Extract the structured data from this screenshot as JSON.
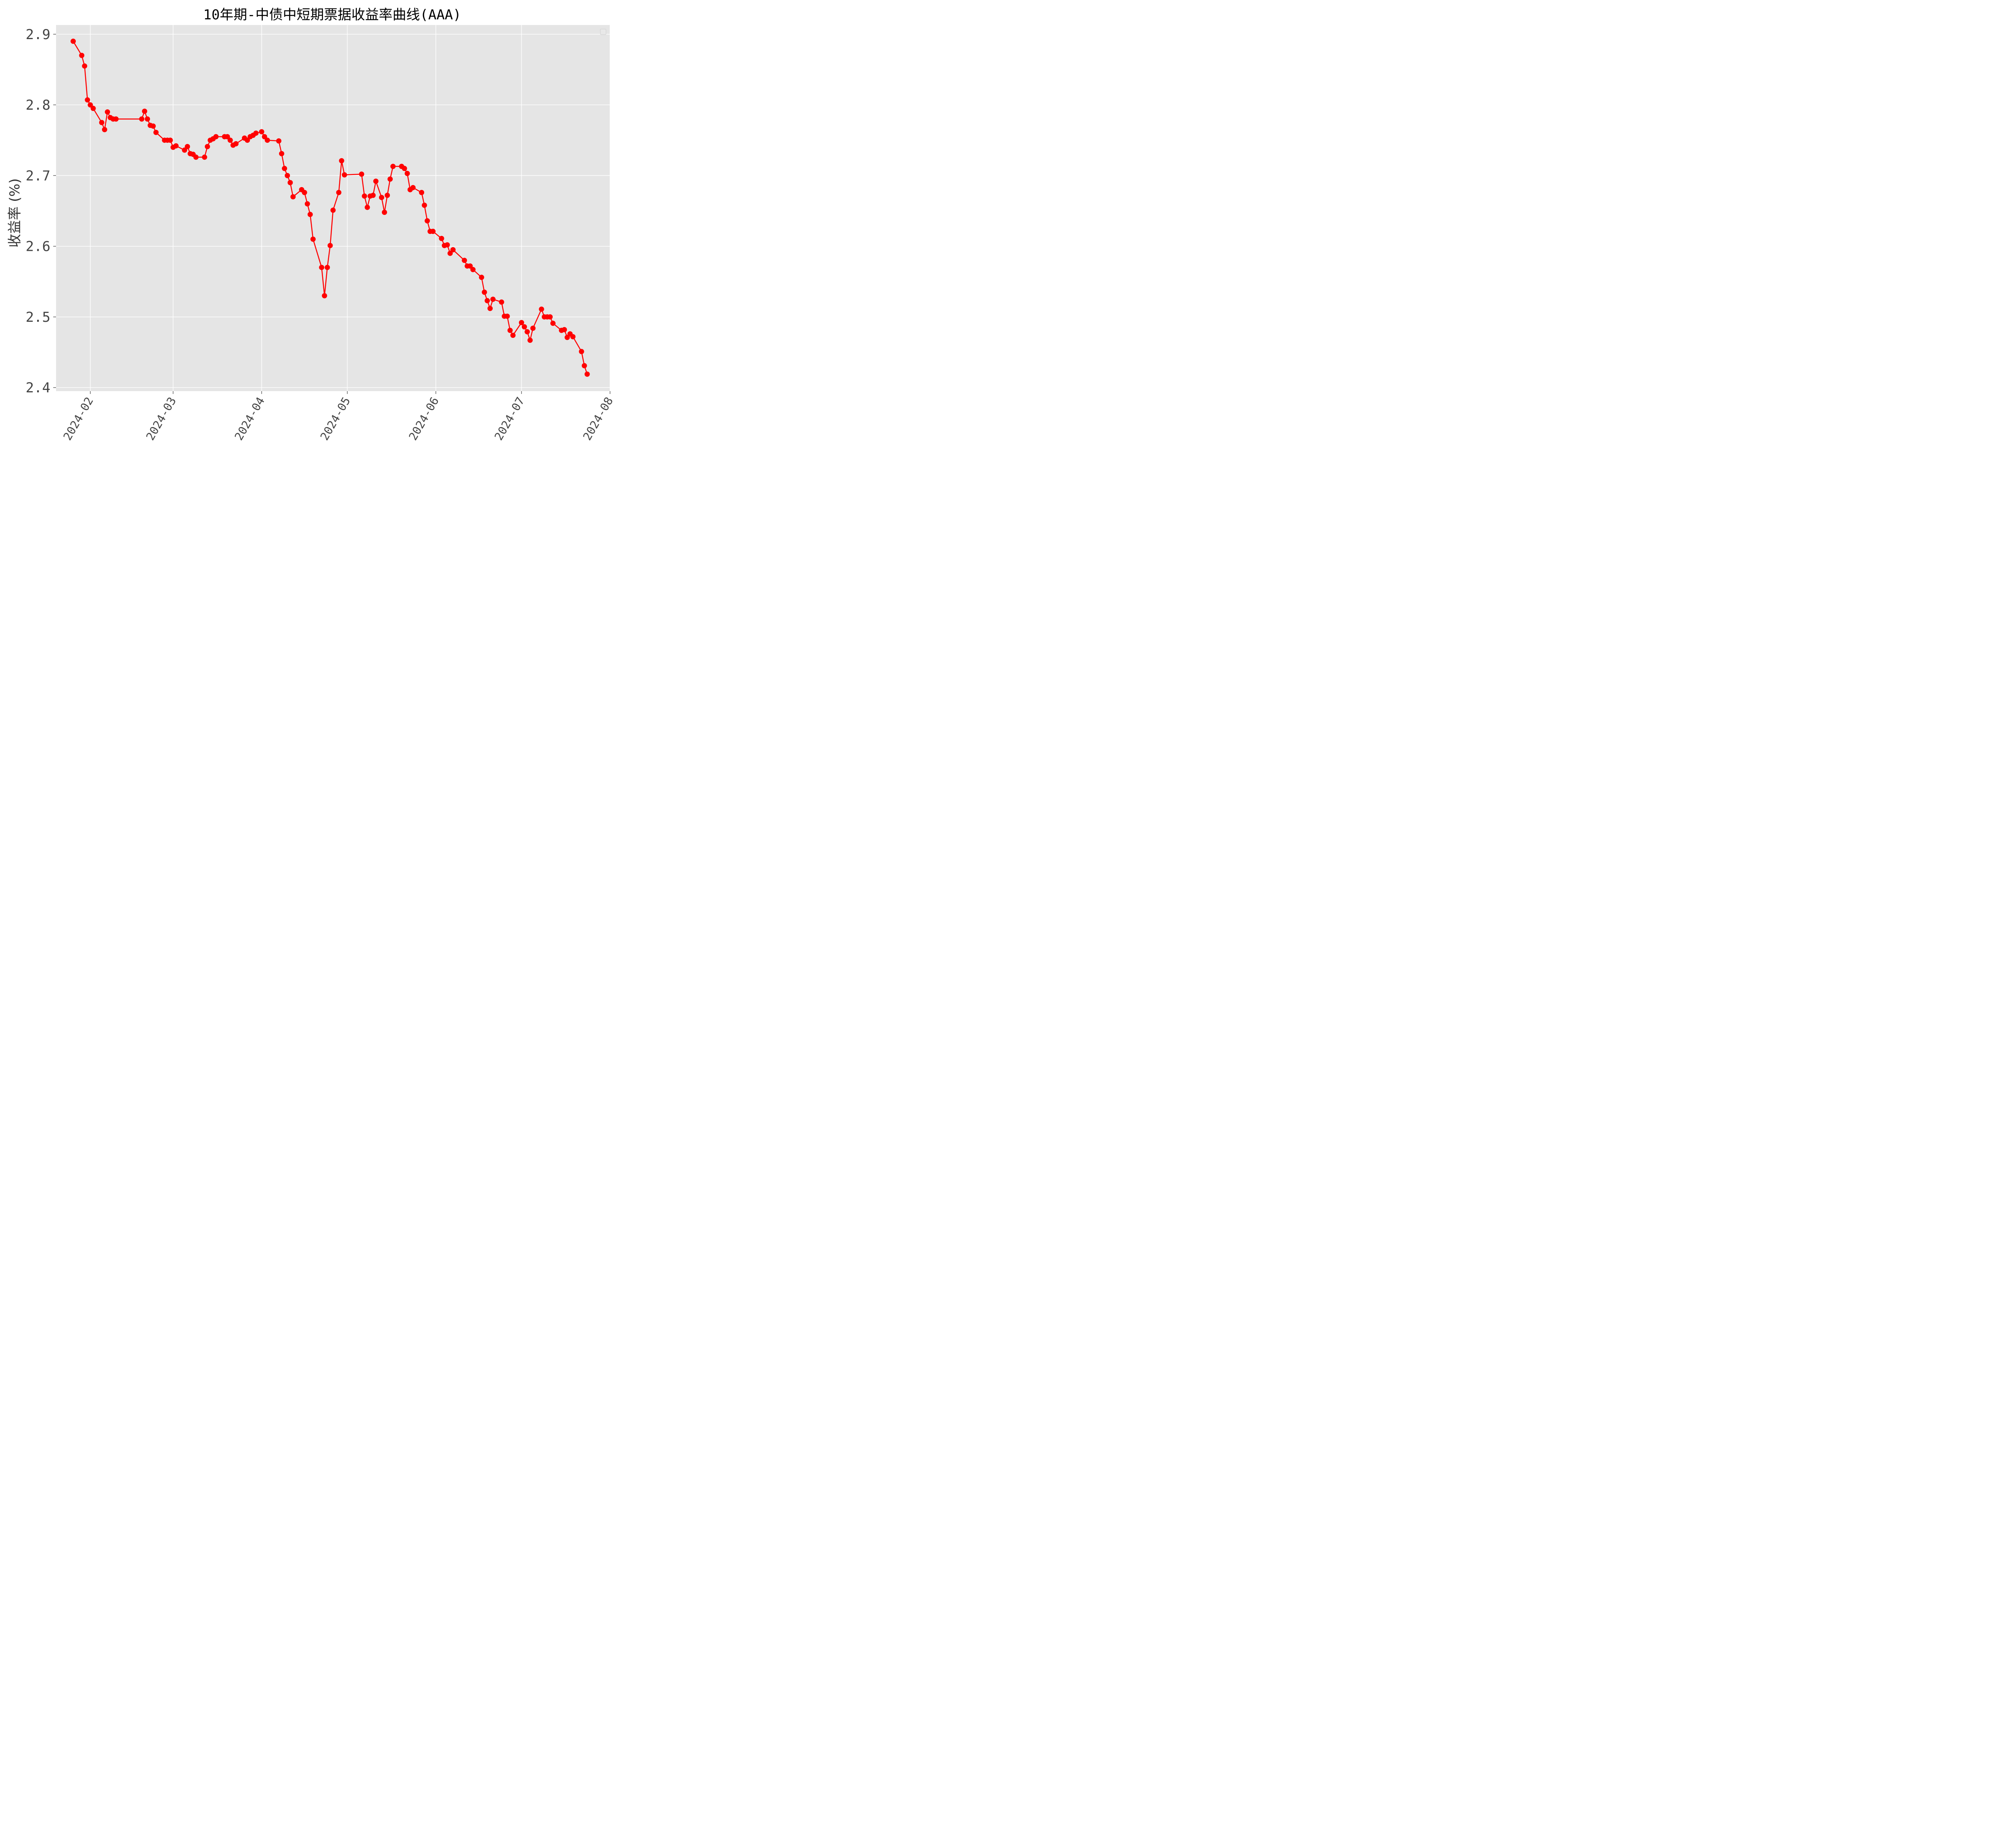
{
  "chart_data": {
    "type": "line",
    "title": "10年期-中债中短期票据收益率曲线(AAA)",
    "ylabel": "收益率 (%)",
    "xlabel": "",
    "ylim": [
      2.395,
      2.913
    ],
    "xlim": [
      "2024-01-20",
      "2024-08-01"
    ],
    "y_ticks": [
      {
        "value": 2.4,
        "label": "2.4"
      },
      {
        "value": 2.5,
        "label": "2.5"
      },
      {
        "value": 2.6,
        "label": "2.6"
      },
      {
        "value": 2.7,
        "label": "2.7"
      },
      {
        "value": 2.8,
        "label": "2.8"
      },
      {
        "value": 2.9,
        "label": "2.9"
      }
    ],
    "x_ticks": [
      {
        "date": "2024-02-01",
        "label": "2024-02"
      },
      {
        "date": "2024-03-01",
        "label": "2024-03"
      },
      {
        "date": "2024-04-01",
        "label": "2024-04"
      },
      {
        "date": "2024-05-01",
        "label": "2024-05"
      },
      {
        "date": "2024-06-01",
        "label": "2024-06"
      },
      {
        "date": "2024-07-01",
        "label": "2024-07"
      },
      {
        "date": "2024-08-01",
        "label": "2024-08"
      }
    ],
    "grid": true,
    "legend": "top-right",
    "background": "#e5e5e5",
    "line_color": "#ff0000",
    "series": [
      {
        "values": [
          [
            "2024-01-26",
            2.89
          ],
          [
            "2024-01-29",
            2.87
          ],
          [
            "2024-01-30",
            2.855
          ],
          [
            "2024-01-31",
            2.807
          ],
          [
            "2024-02-01",
            2.8
          ],
          [
            "2024-02-02",
            2.795
          ],
          [
            "2024-02-05",
            2.775
          ],
          [
            "2024-02-06",
            2.765
          ],
          [
            "2024-02-07",
            2.79
          ],
          [
            "2024-02-08",
            2.782
          ],
          [
            "2024-02-09",
            2.78
          ],
          [
            "2024-02-10",
            2.78
          ],
          [
            "2024-02-19",
            2.78
          ],
          [
            "2024-02-20",
            2.791
          ],
          [
            "2024-02-21",
            2.78
          ],
          [
            "2024-02-22",
            2.771
          ],
          [
            "2024-02-23",
            2.77
          ],
          [
            "2024-02-24",
            2.761
          ],
          [
            "2024-02-27",
            2.75
          ],
          [
            "2024-02-28",
            2.75
          ],
          [
            "2024-02-29",
            2.75
          ],
          [
            "2024-03-01",
            2.74
          ],
          [
            "2024-03-02",
            2.742
          ],
          [
            "2024-03-05",
            2.736
          ],
          [
            "2024-03-06",
            2.741
          ],
          [
            "2024-03-07",
            2.731
          ],
          [
            "2024-03-08",
            2.73
          ],
          [
            "2024-03-09",
            2.726
          ],
          [
            "2024-03-12",
            2.726
          ],
          [
            "2024-03-13",
            2.741
          ],
          [
            "2024-03-14",
            2.75
          ],
          [
            "2024-03-15",
            2.752
          ],
          [
            "2024-03-16",
            2.755
          ],
          [
            "2024-03-19",
            2.755
          ],
          [
            "2024-03-20",
            2.755
          ],
          [
            "2024-03-21",
            2.75
          ],
          [
            "2024-03-22",
            2.743
          ],
          [
            "2024-03-23",
            2.745
          ],
          [
            "2024-03-26",
            2.753
          ],
          [
            "2024-03-27",
            2.75
          ],
          [
            "2024-03-28",
            2.755
          ],
          [
            "2024-03-29",
            2.757
          ],
          [
            "2024-03-30",
            2.76
          ],
          [
            "2024-04-01",
            2.762
          ],
          [
            "2024-04-02",
            2.755
          ],
          [
            "2024-04-03",
            2.75
          ],
          [
            "2024-04-07",
            2.749
          ],
          [
            "2024-04-08",
            2.731
          ],
          [
            "2024-04-09",
            2.71
          ],
          [
            "2024-04-10",
            2.7
          ],
          [
            "2024-04-11",
            2.69
          ],
          [
            "2024-04-12",
            2.67
          ],
          [
            "2024-04-15",
            2.68
          ],
          [
            "2024-04-16",
            2.676
          ],
          [
            "2024-04-17",
            2.66
          ],
          [
            "2024-04-18",
            2.645
          ],
          [
            "2024-04-19",
            2.61
          ],
          [
            "2024-04-22",
            2.57
          ],
          [
            "2024-04-23",
            2.53
          ],
          [
            "2024-04-24",
            2.57
          ],
          [
            "2024-04-25",
            2.601
          ],
          [
            "2024-04-26",
            2.651
          ],
          [
            "2024-04-28",
            2.676
          ],
          [
            "2024-04-29",
            2.721
          ],
          [
            "2024-04-30",
            2.701
          ],
          [
            "2024-05-06",
            2.702
          ],
          [
            "2024-05-07",
            2.671
          ],
          [
            "2024-05-08",
            2.655
          ],
          [
            "2024-05-09",
            2.671
          ],
          [
            "2024-05-10",
            2.672
          ],
          [
            "2024-05-11",
            2.692
          ],
          [
            "2024-05-13",
            2.669
          ],
          [
            "2024-05-14",
            2.648
          ],
          [
            "2024-05-15",
            2.672
          ],
          [
            "2024-05-16",
            2.695
          ],
          [
            "2024-05-17",
            2.713
          ],
          [
            "2024-05-20",
            2.713
          ],
          [
            "2024-05-21",
            2.71
          ],
          [
            "2024-05-22",
            2.703
          ],
          [
            "2024-05-23",
            2.68
          ],
          [
            "2024-05-24",
            2.683
          ],
          [
            "2024-05-27",
            2.676
          ],
          [
            "2024-05-28",
            2.658
          ],
          [
            "2024-05-29",
            2.636
          ],
          [
            "2024-05-30",
            2.621
          ],
          [
            "2024-05-31",
            2.621
          ],
          [
            "2024-06-03",
            2.611
          ],
          [
            "2024-06-04",
            2.601
          ],
          [
            "2024-06-05",
            2.602
          ],
          [
            "2024-06-06",
            2.59
          ],
          [
            "2024-06-07",
            2.595
          ],
          [
            "2024-06-11",
            2.58
          ],
          [
            "2024-06-12",
            2.572
          ],
          [
            "2024-06-13",
            2.572
          ],
          [
            "2024-06-14",
            2.567
          ],
          [
            "2024-06-17",
            2.556
          ],
          [
            "2024-06-18",
            2.535
          ],
          [
            "2024-06-19",
            2.523
          ],
          [
            "2024-06-20",
            2.512
          ],
          [
            "2024-06-21",
            2.525
          ],
          [
            "2024-06-24",
            2.521
          ],
          [
            "2024-06-25",
            2.501
          ],
          [
            "2024-06-26",
            2.501
          ],
          [
            "2024-06-27",
            2.481
          ],
          [
            "2024-06-28",
            2.474
          ],
          [
            "2024-07-01",
            2.492
          ],
          [
            "2024-07-02",
            2.486
          ],
          [
            "2024-07-03",
            2.479
          ],
          [
            "2024-07-04",
            2.467
          ],
          [
            "2024-07-05",
            2.484
          ],
          [
            "2024-07-08",
            2.511
          ],
          [
            "2024-07-09",
            2.5
          ],
          [
            "2024-07-10",
            2.5
          ],
          [
            "2024-07-11",
            2.5
          ],
          [
            "2024-07-12",
            2.491
          ],
          [
            "2024-07-15",
            2.481
          ],
          [
            "2024-07-16",
            2.482
          ],
          [
            "2024-07-17",
            2.471
          ],
          [
            "2024-07-18",
            2.476
          ],
          [
            "2024-07-19",
            2.472
          ],
          [
            "2024-07-22",
            2.451
          ],
          [
            "2024-07-23",
            2.431
          ],
          [
            "2024-07-24",
            2.419
          ]
        ]
      }
    ]
  }
}
